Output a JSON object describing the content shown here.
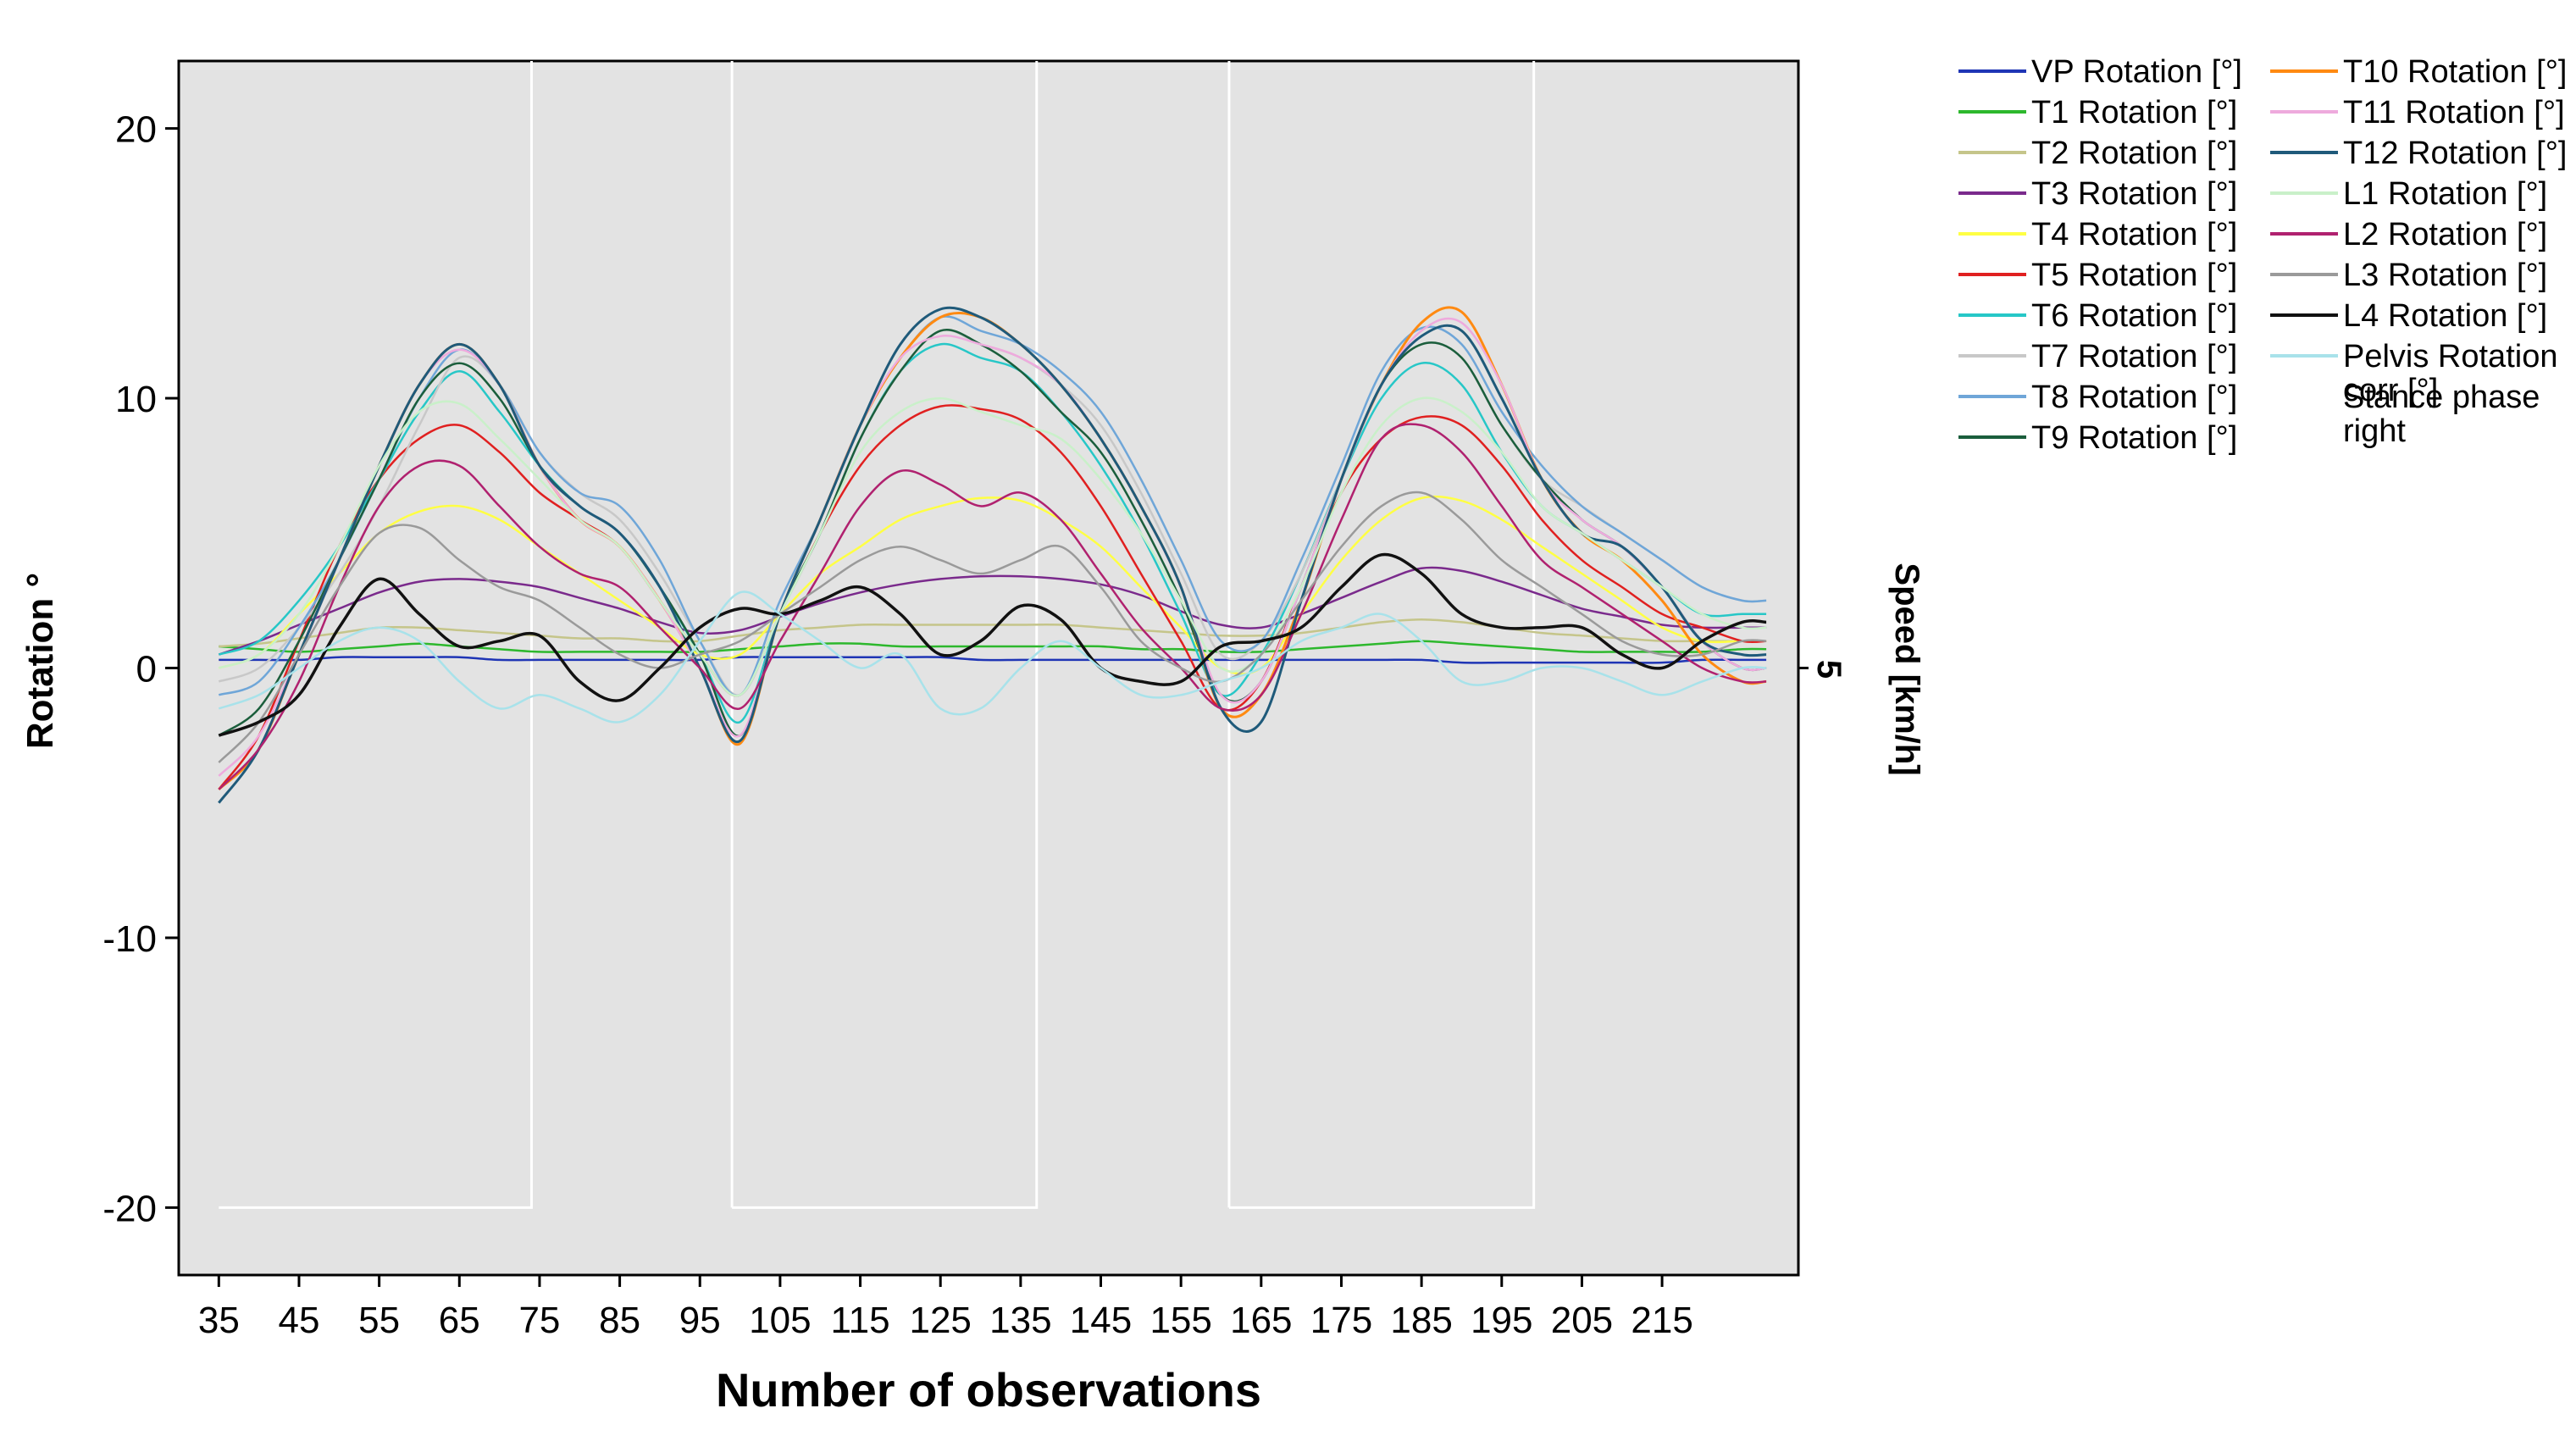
{
  "chart_data": {
    "type": "line",
    "title": "",
    "xlabel": "Number of observations",
    "ylabel": "Rotation °",
    "y2label": "Speed [km/h]",
    "y2_tick": "5",
    "xlim": [
      30,
      232
    ],
    "ylim": [
      -22.5,
      22.5
    ],
    "x_ticks": [
      "35",
      "45",
      "55",
      "65",
      "75",
      "85",
      "95",
      "105",
      "115",
      "125",
      "135",
      "145",
      "155",
      "165",
      "175",
      "185",
      "195",
      "205",
      "215"
    ],
    "y_ticks": [
      "20",
      "10",
      "0",
      "-10",
      "-20"
    ],
    "grid": false,
    "legend_position": "right",
    "colors": {
      "plot_background": "#e3e3e3",
      "stance_phase": "#ffffff"
    },
    "stance_phase": {
      "name": "Stance phase right",
      "baseline": -20,
      "intervals": [
        [
          35,
          74
        ],
        [
          99,
          137
        ],
        [
          161,
          199
        ]
      ]
    },
    "x": [
      35,
      40,
      45,
      50,
      55,
      60,
      65,
      70,
      75,
      80,
      85,
      90,
      95,
      100,
      105,
      110,
      115,
      120,
      125,
      130,
      135,
      140,
      145,
      150,
      155,
      160,
      165,
      170,
      175,
      180,
      185,
      190,
      195,
      200,
      205,
      210,
      215,
      220,
      225,
      228
    ],
    "series": [
      {
        "name": "VP Rotation [°]",
        "color": "#1f35b5",
        "width": 2.5,
        "values": [
          0.3,
          0.3,
          0.3,
          0.4,
          0.4,
          0.4,
          0.4,
          0.3,
          0.3,
          0.3,
          0.3,
          0.3,
          0.3,
          0.4,
          0.4,
          0.4,
          0.4,
          0.4,
          0.4,
          0.3,
          0.3,
          0.3,
          0.3,
          0.3,
          0.3,
          0.3,
          0.3,
          0.3,
          0.3,
          0.3,
          0.3,
          0.2,
          0.2,
          0.2,
          0.2,
          0.2,
          0.2,
          0.3,
          0.3,
          0.3
        ]
      },
      {
        "name": "T1 Rotation [°]",
        "color": "#2db82d",
        "width": 2.5,
        "values": [
          0.8,
          0.7,
          0.6,
          0.7,
          0.8,
          0.9,
          0.8,
          0.7,
          0.6,
          0.6,
          0.6,
          0.6,
          0.6,
          0.7,
          0.8,
          0.9,
          0.9,
          0.8,
          0.8,
          0.8,
          0.8,
          0.8,
          0.8,
          0.7,
          0.7,
          0.6,
          0.6,
          0.7,
          0.8,
          0.9,
          1.0,
          0.9,
          0.8,
          0.7,
          0.6,
          0.6,
          0.6,
          0.6,
          0.7,
          0.7
        ]
      },
      {
        "name": "T2 Rotation [°]",
        "color": "#c5c58a",
        "width": 2.5,
        "values": [
          0.8,
          0.9,
          1.1,
          1.3,
          1.5,
          1.5,
          1.4,
          1.3,
          1.2,
          1.1,
          1.1,
          1.0,
          1.0,
          1.2,
          1.4,
          1.5,
          1.6,
          1.6,
          1.6,
          1.6,
          1.6,
          1.6,
          1.5,
          1.4,
          1.3,
          1.2,
          1.2,
          1.3,
          1.5,
          1.7,
          1.8,
          1.7,
          1.5,
          1.3,
          1.2,
          1.1,
          1.0,
          1.0,
          1.0,
          1.0
        ]
      },
      {
        "name": "T3 Rotation [°]",
        "color": "#7a2a8c",
        "width": 2.5,
        "values": [
          0.5,
          1.0,
          1.6,
          2.2,
          2.8,
          3.2,
          3.3,
          3.2,
          3.0,
          2.6,
          2.2,
          1.7,
          1.3,
          1.4,
          1.9,
          2.4,
          2.8,
          3.1,
          3.3,
          3.4,
          3.4,
          3.3,
          3.1,
          2.7,
          2.1,
          1.6,
          1.5,
          2.0,
          2.6,
          3.2,
          3.7,
          3.6,
          3.2,
          2.7,
          2.2,
          1.9,
          1.6,
          1.5,
          1.5,
          1.5
        ]
      },
      {
        "name": "T4 Rotation [°]",
        "color": "#ffff44",
        "width": 2.5,
        "values": [
          0.0,
          0.5,
          2.0,
          3.5,
          5.0,
          5.8,
          6.0,
          5.5,
          4.5,
          3.5,
          2.5,
          1.5,
          0.5,
          0.5,
          2.0,
          3.5,
          4.5,
          5.5,
          6.0,
          6.3,
          6.2,
          5.5,
          4.5,
          3.0,
          1.5,
          0.0,
          0.0,
          2.0,
          4.0,
          5.5,
          6.3,
          6.2,
          5.5,
          4.5,
          3.5,
          2.5,
          1.5,
          1.0,
          1.0,
          1.0
        ]
      },
      {
        "name": "T5 Rotation [°]",
        "color": "#e02020",
        "width": 2.5,
        "values": [
          -4.5,
          -2.5,
          1.0,
          4.5,
          7.0,
          8.5,
          9.0,
          8.0,
          6.5,
          5.5,
          4.5,
          2.5,
          0.5,
          -1.0,
          2.0,
          5.0,
          7.5,
          9.0,
          9.7,
          9.6,
          9.2,
          8.0,
          6.0,
          3.5,
          1.0,
          -1.5,
          -0.5,
          3.0,
          6.5,
          8.5,
          9.3,
          9.0,
          7.5,
          5.5,
          4.0,
          3.0,
          2.0,
          1.5,
          1.0,
          1.0
        ]
      },
      {
        "name": "T6 Rotation [°]",
        "color": "#27c7c7",
        "width": 2.5,
        "values": [
          0.5,
          1.0,
          2.5,
          4.5,
          7.0,
          9.5,
          11.0,
          9.5,
          7.5,
          6.0,
          5.0,
          3.0,
          0.5,
          -2.0,
          2.0,
          5.0,
          8.5,
          11.0,
          12.0,
          11.5,
          11.0,
          9.5,
          7.5,
          5.0,
          2.0,
          -1.0,
          0.5,
          3.5,
          7.0,
          10.0,
          11.3,
          10.5,
          8.0,
          6.0,
          5.0,
          4.0,
          3.0,
          2.0,
          2.0,
          2.0
        ]
      },
      {
        "name": "T7 Rotation [°]",
        "color": "#c8c8c8",
        "width": 2.5,
        "values": [
          -0.5,
          0.0,
          1.5,
          3.5,
          6.0,
          9.0,
          11.5,
          10.5,
          8.0,
          6.5,
          5.5,
          3.5,
          1.0,
          -1.0,
          2.0,
          5.0,
          8.5,
          11.0,
          12.5,
          12.0,
          11.5,
          10.5,
          9.0,
          6.5,
          3.5,
          0.5,
          1.0,
          3.5,
          7.0,
          10.5,
          12.0,
          11.5,
          9.0,
          7.0,
          6.0,
          5.0,
          4.0,
          3.0,
          2.5,
          2.5
        ]
      },
      {
        "name": "T8 Rotation [°]",
        "color": "#6fa6d8",
        "width": 2.5,
        "values": [
          -1.0,
          -0.5,
          1.5,
          4.0,
          7.0,
          10.0,
          11.8,
          10.5,
          8.0,
          6.5,
          6.0,
          4.0,
          1.0,
          -1.0,
          2.5,
          5.5,
          9.0,
          11.5,
          13.0,
          12.5,
          12.0,
          11.0,
          9.5,
          7.0,
          4.0,
          1.0,
          1.0,
          4.0,
          7.5,
          11.0,
          12.6,
          12.0,
          9.5,
          7.5,
          6.0,
          5.0,
          4.0,
          3.0,
          2.5,
          2.5
        ]
      },
      {
        "name": "T9 Rotation [°]",
        "color": "#1b5e3c",
        "width": 2.5,
        "values": [
          -2.5,
          -1.5,
          1.0,
          4.0,
          7.0,
          10.0,
          11.3,
          10.0,
          7.5,
          6.0,
          5.0,
          3.0,
          0.5,
          -2.5,
          2.0,
          5.0,
          8.5,
          11.0,
          12.5,
          12.0,
          11.0,
          9.5,
          8.0,
          5.5,
          2.5,
          -1.0,
          -0.5,
          3.0,
          7.0,
          10.5,
          12.0,
          11.5,
          9.0,
          7.0,
          5.5,
          4.5,
          3.0,
          1.0,
          0.0,
          0.0
        ]
      },
      {
        "name": "T10 Rotation [°]",
        "color": "#ff8a12",
        "width": 3,
        "values": [
          -4.5,
          -3.0,
          0.5,
          4.0,
          7.5,
          10.5,
          12.0,
          10.5,
          7.5,
          5.5,
          4.5,
          2.5,
          0.0,
          -2.8,
          2.0,
          5.5,
          9.0,
          11.5,
          13.0,
          13.0,
          12.0,
          10.5,
          8.5,
          6.0,
          3.0,
          -1.5,
          -1.0,
          2.5,
          7.0,
          10.5,
          12.8,
          13.2,
          10.5,
          7.0,
          5.0,
          4.0,
          2.5,
          0.5,
          -0.5,
          -0.5
        ]
      },
      {
        "name": "T11 Rotation [°]",
        "color": "#eeaadd",
        "width": 2.5,
        "values": [
          -4.0,
          -2.5,
          0.5,
          4.0,
          7.5,
          10.5,
          11.8,
          10.5,
          7.5,
          5.5,
          4.5,
          2.5,
          0.0,
          -2.5,
          2.0,
          5.5,
          9.0,
          11.5,
          12.3,
          12.0,
          11.5,
          10.5,
          8.5,
          6.0,
          3.0,
          -1.0,
          -0.5,
          3.0,
          7.0,
          10.5,
          12.5,
          12.8,
          10.5,
          7.0,
          5.5,
          4.5,
          3.0,
          1.0,
          0.0,
          0.0
        ]
      },
      {
        "name": "T12 Rotation [°]",
        "color": "#1f5a7a",
        "width": 3,
        "values": [
          -5.0,
          -3.0,
          0.5,
          4.0,
          7.5,
          10.5,
          12.0,
          10.5,
          7.5,
          6.0,
          5.0,
          3.0,
          0.0,
          -2.7,
          2.0,
          5.5,
          9.0,
          12.0,
          13.3,
          13.0,
          12.0,
          10.5,
          8.5,
          6.0,
          3.0,
          -1.5,
          -2.0,
          2.5,
          7.0,
          10.5,
          12.3,
          12.5,
          10.0,
          7.0,
          5.0,
          4.5,
          3.0,
          1.0,
          0.5,
          0.5
        ]
      },
      {
        "name": "L1 Rotation [°]",
        "color": "#c9f0c9",
        "width": 2.5,
        "values": [
          0.0,
          0.5,
          2.0,
          4.5,
          7.5,
          9.5,
          9.8,
          8.5,
          7.0,
          5.5,
          4.5,
          2.5,
          0.5,
          -1.0,
          2.0,
          5.0,
          8.0,
          9.5,
          10.0,
          9.5,
          9.0,
          8.5,
          7.0,
          5.0,
          2.5,
          0.0,
          0.5,
          3.0,
          6.5,
          9.0,
          10.0,
          9.5,
          8.0,
          6.0,
          5.0,
          4.0,
          3.0,
          2.0,
          1.5,
          1.5
        ]
      },
      {
        "name": "L2 Rotation [°]",
        "color": "#b0216f",
        "width": 2.5,
        "values": [
          -4.5,
          -3.0,
          -0.5,
          3.0,
          6.0,
          7.5,
          7.5,
          6.0,
          4.5,
          3.5,
          3.0,
          1.5,
          0.0,
          -1.5,
          1.0,
          3.5,
          6.0,
          7.3,
          6.8,
          6.0,
          6.5,
          5.5,
          3.5,
          1.5,
          0.0,
          -1.5,
          -1.0,
          2.0,
          5.5,
          8.5,
          9.0,
          8.0,
          6.0,
          4.0,
          3.0,
          2.0,
          1.0,
          0.0,
          -0.5,
          -0.5
        ]
      },
      {
        "name": "L3 Rotation [°]",
        "color": "#9a9a9a",
        "width": 2.5,
        "values": [
          -3.5,
          -2.0,
          0.5,
          3.0,
          5.0,
          5.2,
          4.0,
          3.0,
          2.5,
          1.5,
          0.5,
          0.0,
          0.5,
          1.0,
          2.0,
          3.0,
          4.0,
          4.5,
          4.0,
          3.5,
          4.0,
          4.5,
          3.0,
          1.0,
          0.0,
          -0.5,
          0.5,
          2.5,
          4.5,
          6.0,
          6.5,
          5.5,
          4.0,
          3.0,
          2.0,
          1.0,
          0.5,
          0.5,
          1.0,
          1.0
        ]
      },
      {
        "name": "L4 Rotation [°]",
        "color": "#111111",
        "width": 3.5,
        "values": [
          -2.5,
          -2.0,
          -1.0,
          1.5,
          3.3,
          2.0,
          0.8,
          1.0,
          1.2,
          -0.5,
          -1.2,
          0.0,
          1.5,
          2.2,
          2.0,
          2.5,
          3.0,
          2.0,
          0.5,
          1.0,
          2.3,
          1.8,
          0.0,
          -0.5,
          -0.5,
          0.8,
          1.0,
          1.5,
          3.0,
          4.2,
          3.5,
          2.0,
          1.5,
          1.5,
          1.5,
          0.5,
          0.0,
          1.0,
          1.7,
          1.7
        ]
      },
      {
        "name": "Pelvis Rotation corr [°]",
        "color": "#a8e2ea",
        "width": 2.5,
        "values": [
          -1.5,
          -1.0,
          0.0,
          1.0,
          1.5,
          1.0,
          -0.5,
          -1.5,
          -1.0,
          -1.5,
          -2.0,
          -1.0,
          1.0,
          2.8,
          2.0,
          1.0,
          0.0,
          0.5,
          -1.5,
          -1.5,
          0.0,
          1.0,
          0.0,
          -1.0,
          -1.0,
          -0.5,
          0.0,
          1.0,
          1.5,
          2.0,
          1.0,
          -0.5,
          -0.5,
          0.0,
          0.0,
          -0.5,
          -1.0,
          -0.5,
          0.0,
          0.0
        ]
      }
    ]
  }
}
